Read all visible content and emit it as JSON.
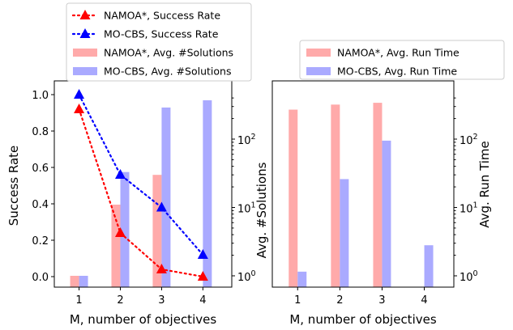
{
  "chart_data": [
    {
      "type": "bar+line",
      "xlabel": "M, number of objectives",
      "ylabel_left": "Success Rate",
      "ylabel_right": "Avg. #Solutions",
      "categories": [
        "1",
        "2",
        "3",
        "4"
      ],
      "ylim_left": [
        0,
        1
      ],
      "ylim_right_log": [
        1,
        100
      ],
      "yticks_left": [
        "0.0",
        "0.2",
        "0.4",
        "0.6",
        "0.8",
        "1.0"
      ],
      "yticks_right": [
        "10",
        "10",
        "10"
      ],
      "yticks_right_exp": [
        "0",
        "1",
        "2"
      ],
      "line_series": [
        {
          "name": "NAMOA*, Success Rate",
          "color": "#ff0000",
          "values": [
            0.92,
            0.24,
            0.04,
            0.0
          ]
        },
        {
          "name": "MO-CBS, Success Rate",
          "color": "#0000ff",
          "values": [
            1.0,
            0.56,
            0.38,
            0.12
          ]
        }
      ],
      "bar_series": [
        {
          "name": "NAMOA*, Avg. #Solutions",
          "color": "#ffaaaa",
          "values": [
            1,
            11,
            30,
            null
          ]
        },
        {
          "name": "MO-CBS, Avg. #Solutions",
          "color": "#aaaaff",
          "values": [
            1,
            33,
            290,
            370
          ]
        }
      ],
      "legend_placement": "top"
    },
    {
      "type": "bar",
      "xlabel": "M, number of objectives",
      "ylabel_right": "Avg. Run Time",
      "categories": [
        "1",
        "2",
        "3",
        "4"
      ],
      "ylim_right_log": [
        1,
        100
      ],
      "yticks_right": [
        "10",
        "10",
        "10"
      ],
      "yticks_right_exp": [
        "0",
        "1",
        "2"
      ],
      "bar_series": [
        {
          "name": "NAMOA*, Avg. Run Time",
          "color": "#ffaaaa",
          "values": [
            270,
            320,
            340,
            null
          ]
        },
        {
          "name": "MO-CBS, Avg. Run Time",
          "color": "#aaaaff",
          "values": [
            1.15,
            26,
            95,
            2.8
          ]
        }
      ],
      "legend_placement": "top"
    }
  ]
}
